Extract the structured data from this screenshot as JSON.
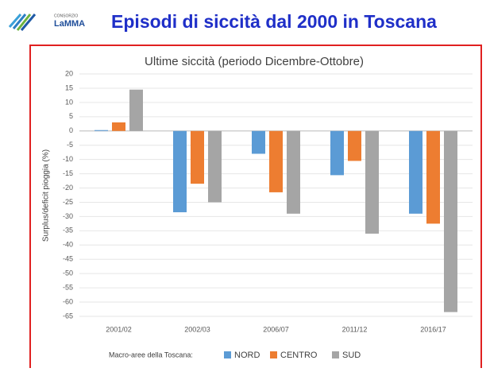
{
  "header": {
    "logo_small": "CONSORZIO",
    "logo": "LaMMA",
    "title": "Episodi di siccità dal 2000 in Toscana"
  },
  "chart_data": {
    "type": "bar",
    "title": "Ultime siccità (periodo Dicembre-Ottobre)",
    "y_label": "Surplus/deficit  pioggia (%)",
    "categories": [
      "2001/02",
      "2002/03",
      "2006/07",
      "2011/12",
      "2016/17"
    ],
    "series": [
      {
        "name": "NORD",
        "color": "#5b9bd5",
        "values": [
          0.3,
          -28.5,
          -8,
          -15.5,
          -29
        ]
      },
      {
        "name": "CENTRO",
        "color": "#ed7d31",
        "values": [
          3,
          -18.5,
          -21.5,
          -10.5,
          -32.5
        ]
      },
      {
        "name": "SUD",
        "color": "#a5a5a5",
        "values": [
          14.5,
          -25,
          -29,
          -36,
          -63.5
        ]
      }
    ],
    "legend_title": "Macro-aree della Toscana:",
    "legend": "bottom",
    "ylim": [
      -65,
      20
    ],
    "yticks": [
      20,
      15,
      10,
      5,
      0,
      -5,
      -10,
      -15,
      -20,
      -25,
      -30,
      -35,
      -40,
      -45,
      -50,
      -55,
      -60,
      -65
    ],
    "grid": true
  }
}
